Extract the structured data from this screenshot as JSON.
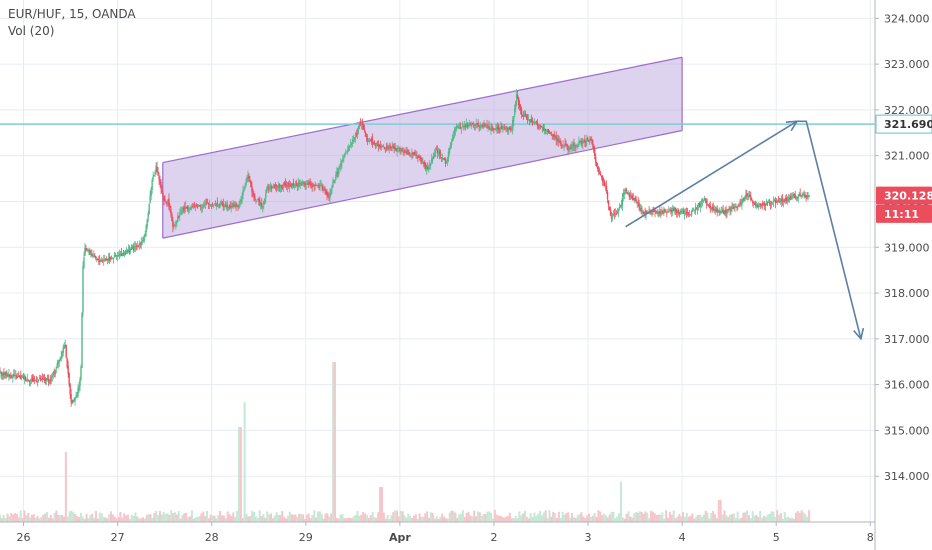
{
  "header": {
    "symbol_line": "EUR/HUF, 15, OANDA",
    "volume_label": "Vol (20)"
  },
  "colors": {
    "up": "#53b987",
    "down": "#eb4d5c",
    "channel_fill": "#b39ddb",
    "channel_line": "#9c6ccd",
    "hline": "#80cbd4",
    "arrow": "#5b7fa5",
    "vol_up": "#c6e8d6",
    "vol_down": "#f5c6cb",
    "grid": "#e8ecf0"
  },
  "chart_data": {
    "type": "candlestick",
    "title": "EUR/HUF, 15, OANDA",
    "y_axis": {
      "ticks": [
        "324.000",
        "323.000",
        "322.000",
        "321.000",
        "320.000",
        "319.000",
        "318.000",
        "317.000",
        "316.000",
        "315.000",
        "314.000"
      ],
      "tick_values": [
        324,
        323,
        322,
        321,
        320,
        319,
        318,
        317,
        316,
        315,
        314
      ],
      "ylim": [
        313.0,
        324.4
      ]
    },
    "x_axis": {
      "ticks": [
        "26",
        "27",
        "28",
        "29",
        "Apr",
        "2",
        "3",
        "4",
        "5",
        "8"
      ],
      "tick_days": [
        0,
        1,
        2,
        3,
        4,
        5,
        6,
        7,
        8,
        9
      ],
      "xlim": [
        -0.25,
        9.05
      ]
    },
    "price_path": [
      [
        -0.25,
        316.25
      ],
      [
        0.1,
        316.1
      ],
      [
        0.3,
        316.1
      ],
      [
        0.4,
        316.6
      ],
      [
        0.45,
        316.9
      ],
      [
        0.5,
        315.9
      ],
      [
        0.52,
        315.6
      ],
      [
        0.58,
        315.8
      ],
      [
        0.62,
        316.2
      ],
      [
        0.64,
        318.5
      ],
      [
        0.66,
        319.0
      ],
      [
        0.8,
        318.7
      ],
      [
        1.0,
        318.8
      ],
      [
        1.2,
        319.0
      ],
      [
        1.3,
        319.2
      ],
      [
        1.38,
        320.5
      ],
      [
        1.42,
        320.75
      ],
      [
        1.46,
        320.4
      ],
      [
        1.5,
        320.0
      ],
      [
        1.55,
        320.0
      ],
      [
        1.6,
        319.45
      ],
      [
        1.7,
        319.85
      ],
      [
        2.0,
        319.95
      ],
      [
        2.3,
        319.9
      ],
      [
        2.4,
        320.6
      ],
      [
        2.45,
        320.1
      ],
      [
        2.55,
        319.9
      ],
      [
        2.6,
        320.3
      ],
      [
        2.8,
        320.35
      ],
      [
        3.0,
        320.4
      ],
      [
        3.2,
        320.3
      ],
      [
        3.25,
        320.05
      ],
      [
        3.3,
        320.4
      ],
      [
        3.4,
        320.9
      ],
      [
        3.55,
        321.5
      ],
      [
        3.6,
        321.75
      ],
      [
        3.65,
        321.4
      ],
      [
        3.8,
        321.2
      ],
      [
        4.0,
        321.15
      ],
      [
        4.2,
        321.0
      ],
      [
        4.3,
        320.7
      ],
      [
        4.4,
        321.1
      ],
      [
        4.5,
        320.85
      ],
      [
        4.6,
        321.6
      ],
      [
        4.8,
        321.7
      ],
      [
        4.9,
        321.65
      ],
      [
        5.0,
        321.6
      ],
      [
        5.2,
        321.6
      ],
      [
        5.25,
        322.35
      ],
      [
        5.3,
        321.9
      ],
      [
        5.45,
        321.7
      ],
      [
        5.6,
        321.5
      ],
      [
        5.8,
        321.15
      ],
      [
        6.0,
        321.35
      ],
      [
        6.05,
        321.3
      ],
      [
        6.1,
        320.8
      ],
      [
        6.2,
        320.3
      ],
      [
        6.25,
        319.65
      ],
      [
        6.35,
        319.85
      ],
      [
        6.4,
        320.25
      ],
      [
        6.5,
        320.05
      ],
      [
        6.6,
        319.75
      ],
      [
        6.75,
        319.75
      ],
      [
        6.9,
        319.8
      ],
      [
        7.1,
        319.75
      ],
      [
        7.25,
        320.05
      ],
      [
        7.3,
        319.85
      ],
      [
        7.45,
        319.75
      ],
      [
        7.6,
        319.9
      ],
      [
        7.7,
        320.15
      ],
      [
        7.8,
        319.9
      ],
      [
        8.0,
        320.0
      ],
      [
        8.2,
        320.1
      ],
      [
        8.3,
        320.15
      ],
      [
        8.35,
        320.12
      ]
    ],
    "channel": {
      "upper": [
        [
          1.48,
          320.85
        ],
        [
          7.0,
          323.15
        ]
      ],
      "lower": [
        [
          1.48,
          319.2
        ],
        [
          7.0,
          321.55
        ]
      ]
    },
    "horizontal_line": 321.69,
    "trend_line": [
      [
        6.4,
        319.45
      ],
      [
        8.22,
        321.75
      ]
    ],
    "projection_arrow": [
      [
        8.22,
        321.75
      ],
      [
        8.32,
        321.75
      ],
      [
        8.9,
        317.0
      ]
    ],
    "price_tags": [
      {
        "label": "321.690",
        "value": 321.69,
        "style": "hline"
      },
      {
        "label": "320.128",
        "value": 320.128,
        "style": "price"
      },
      {
        "label": "11:11",
        "value": 319.73,
        "style": "price"
      }
    ],
    "volume_peaks": [
      [
        0.45,
        70
      ],
      [
        2.3,
        95
      ],
      [
        2.35,
        120
      ],
      [
        3.3,
        160
      ],
      [
        3.8,
        35
      ],
      [
        6.35,
        40
      ],
      [
        7.4,
        22
      ]
    ]
  }
}
